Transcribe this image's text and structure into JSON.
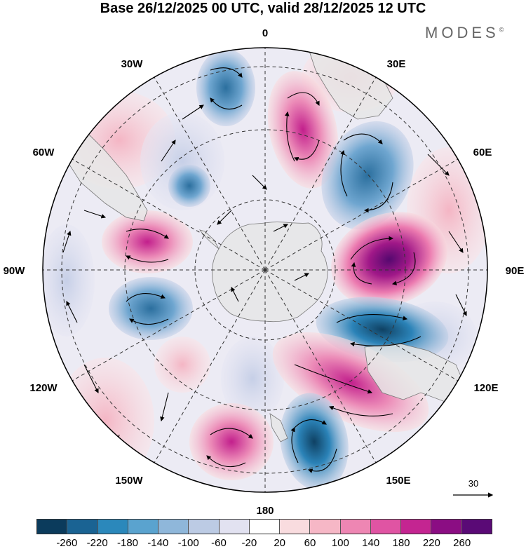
{
  "title": "Base 26/12/2025 00 UTC, valid 28/12/2025 12 UTC",
  "brand": "MODES",
  "brand_mark": "©",
  "longitude_labels": {
    "top": "0",
    "top_right": "30E",
    "right_upper": "60E",
    "right": "90E",
    "right_lower": "120E",
    "bottom_right": "150E",
    "bottom": "180",
    "bottom_left": "150W",
    "left_lower": "120W",
    "left": "90W",
    "left_upper": "60W",
    "top_left": "30W"
  },
  "reference_vector": {
    "value": "30"
  },
  "colorbar": {
    "labels": [
      "-260",
      "-220",
      "-180",
      "-140",
      "-100",
      "-60",
      "-20",
      "20",
      "60",
      "100",
      "140",
      "180",
      "220",
      "260"
    ],
    "colors": [
      "#0b3b5c",
      "#1a6393",
      "#2b88bb",
      "#5aa3cf",
      "#8fb7da",
      "#bccbe4",
      "#e2e2f1",
      "#ffffff",
      "#f9dcdf",
      "#f6b7c6",
      "#ee86b3",
      "#e054a3",
      "#c42591",
      "#8b0d83",
      "#5a0a76"
    ]
  },
  "map_features": {
    "projection": "south-polar-stereographic",
    "fill_field": "geopotential-height-anomaly",
    "vector_field": "wind"
  }
}
